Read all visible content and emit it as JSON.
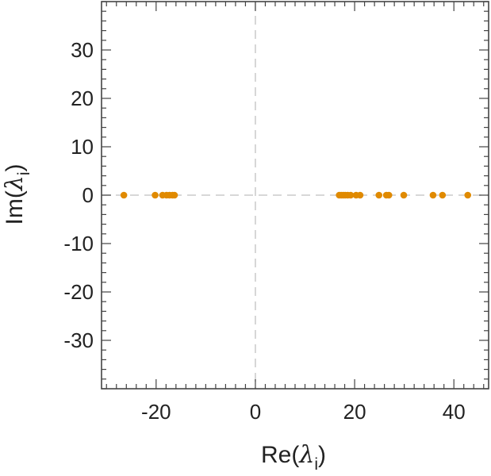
{
  "chart_data": {
    "type": "scatter",
    "title": "",
    "xlabel": {
      "prefix": "Re(",
      "symbol": "λ",
      "subscript": "i",
      "suffix": ")"
    },
    "ylabel": {
      "prefix": "Im(",
      "symbol": "λ",
      "subscript": "i",
      "suffix": ")"
    },
    "xlim": [
      -31,
      47
    ],
    "ylim": [
      -40,
      40
    ],
    "x_ticks": [
      -20,
      0,
      20,
      40
    ],
    "x_tick_labels": [
      "-20",
      "0",
      "20",
      "40"
    ],
    "y_ticks": [
      -30,
      -20,
      -10,
      0,
      10,
      20,
      30
    ],
    "y_tick_labels": [
      "-30",
      "-20",
      "-10",
      "0",
      "10",
      "20",
      "30"
    ],
    "minor_tick_step": 2,
    "reference_lines": {
      "x": 0,
      "y": 0,
      "style": "dashed"
    },
    "grid": false,
    "legend": "none",
    "marker_color": "#e08a00",
    "reference_line_color": "#cccccc",
    "series": [
      {
        "points": [
          {
            "x": -26.5,
            "y": 0
          },
          {
            "x": -20.2,
            "y": 0
          },
          {
            "x": -18.7,
            "y": 0
          },
          {
            "x": -17.9,
            "y": 0
          },
          {
            "x": -17.3,
            "y": 0
          },
          {
            "x": -16.7,
            "y": 0
          },
          {
            "x": -16.3,
            "y": 0
          },
          {
            "x": 16.9,
            "y": 0
          },
          {
            "x": 17.3,
            "y": 0
          },
          {
            "x": 17.7,
            "y": 0
          },
          {
            "x": 18.1,
            "y": 0
          },
          {
            "x": 18.6,
            "y": 0
          },
          {
            "x": 19.2,
            "y": 0
          },
          {
            "x": 20.3,
            "y": 0
          },
          {
            "x": 21.1,
            "y": 0
          },
          {
            "x": 24.9,
            "y": 0
          },
          {
            "x": 26.4,
            "y": 0
          },
          {
            "x": 26.9,
            "y": 0
          },
          {
            "x": 29.9,
            "y": 0
          },
          {
            "x": 35.8,
            "y": 0
          },
          {
            "x": 37.7,
            "y": 0
          },
          {
            "x": 42.8,
            "y": 0
          }
        ]
      }
    ]
  }
}
